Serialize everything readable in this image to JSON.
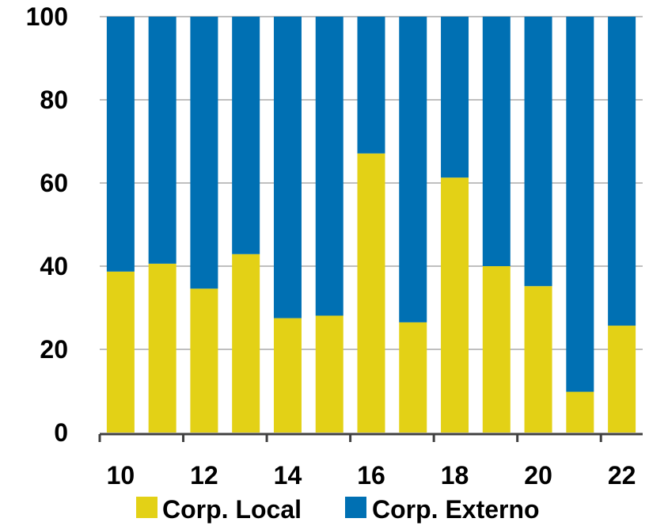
{
  "chart_data": {
    "type": "bar",
    "stacked": true,
    "categories": [
      "10",
      "11",
      "12",
      "13",
      "14",
      "15",
      "16",
      "17",
      "18",
      "19",
      "20",
      "21",
      "22"
    ],
    "x_tick_labels": [
      "10",
      "12",
      "14",
      "16",
      "18",
      "20",
      "22"
    ],
    "series": [
      {
        "name": "Corp. Local",
        "color": "#E3D116",
        "values": [
          38.7,
          40.6,
          34.6,
          42.9,
          27.5,
          28.1,
          67.1,
          26.5,
          61.3,
          40.0,
          35.2,
          9.8,
          25.7
        ]
      },
      {
        "name": "Corp. Externo",
        "color": "#0070B3",
        "values": [
          61.3,
          59.4,
          65.4,
          57.1,
          72.5,
          71.9,
          32.9,
          73.5,
          38.7,
          60.0,
          64.8,
          90.2,
          74.3
        ]
      }
    ],
    "ylim": [
      0,
      100
    ],
    "y_ticks": [
      "0",
      "20",
      "40",
      "60",
      "80",
      "100"
    ],
    "grid": "horizontal",
    "legend_position": "bottom",
    "title": "",
    "xlabel": "",
    "ylabel": ""
  }
}
